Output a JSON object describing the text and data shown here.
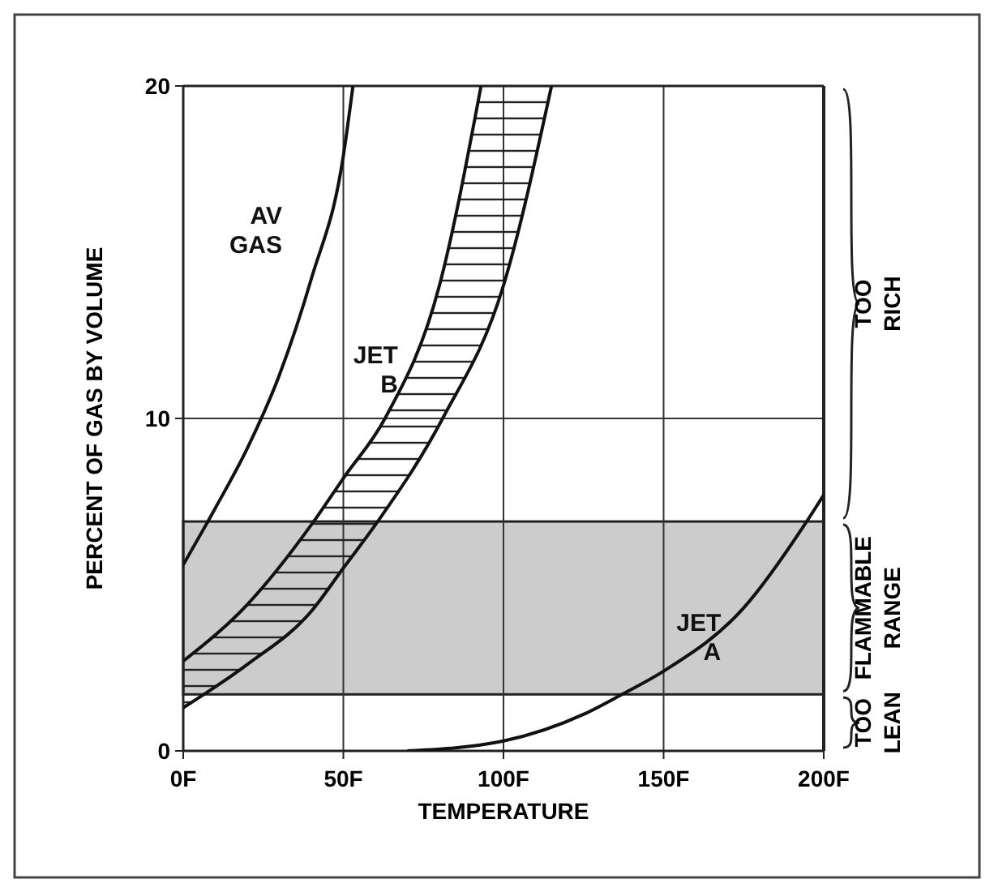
{
  "chart_data": {
    "type": "line",
    "xlabel": "TEMPERATURE",
    "ylabel": "PERCENT OF GAS BY VOLUME",
    "xlim": [
      0,
      200
    ],
    "ylim": [
      0,
      20
    ],
    "xticks": [
      {
        "value": 0,
        "label": "0F"
      },
      {
        "value": 50,
        "label": "50F"
      },
      {
        "value": 100,
        "label": "100F"
      },
      {
        "value": 150,
        "label": "150F"
      },
      {
        "value": 200,
        "label": "200F"
      }
    ],
    "yticks": [
      0,
      10,
      20
    ],
    "grid": true,
    "marker": "none",
    "line_style": "solid",
    "series": [
      {
        "name": "AV GAS",
        "color": "#111111",
        "x": [
          0,
          10,
          20,
          30,
          40,
          50,
          53
        ],
        "values": [
          5.6,
          7.3,
          9.1,
          11.3,
          14.2,
          17.9,
          20
        ]
      },
      {
        "name": "JET B",
        "color": "#111111",
        "x": [
          0,
          20,
          40,
          50,
          63,
          80,
          93
        ],
        "values": [
          2.7,
          4.4,
          6.8,
          8.2,
          10,
          14,
          20
        ]
      },
      {
        "color": "#111111",
        "x": [
          0,
          20,
          40,
          50,
          60,
          81,
          100,
          115
        ],
        "values": [
          1.3,
          2.6,
          4.2,
          5.5,
          6.8,
          10,
          14,
          20
        ]
      },
      {
        "name": "JET A",
        "color": "#111111",
        "x": [
          70,
          100,
          125,
          137,
          150,
          175,
          194,
          200
        ],
        "values": [
          0,
          0.3,
          1.1,
          1.7,
          2.4,
          4.3,
          6.8,
          7.7
        ]
      }
    ],
    "bands": [
      {
        "axis": "y",
        "from": 1.7,
        "to": 6.9,
        "label": "FLAMMABLE RANGE",
        "color": "#cccccc"
      }
    ],
    "annotations": [
      "TOO RICH",
      "TOO LEAN"
    ]
  }
}
